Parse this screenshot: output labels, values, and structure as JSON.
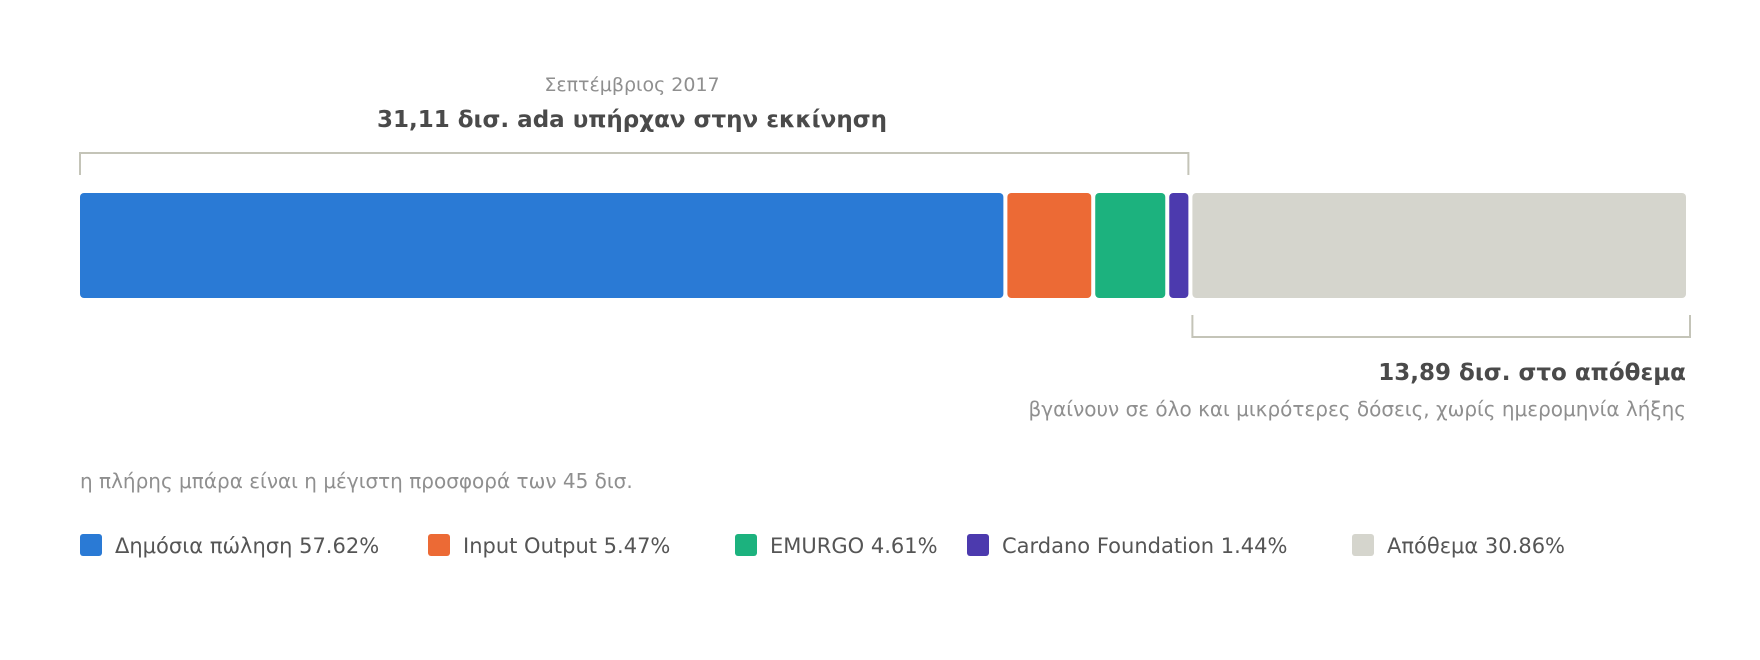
{
  "chart_data": {
    "type": "bar",
    "orientation": "horizontal-stacked",
    "total": 45,
    "series": [
      {
        "name": "Δημόσια πώληση",
        "value": 57.62,
        "label": "Δημόσια πώληση 57.62%",
        "color": "#2a7ad5"
      },
      {
        "name": "Input Output",
        "value": 5.47,
        "label": "Input Output 5.47%",
        "color": "#ec6a35"
      },
      {
        "name": "EMURGO",
        "value": 4.61,
        "label": "EMURGO 4.61%",
        "color": "#1cb27e"
      },
      {
        "name": "Cardano Foundation",
        "value": 1.44,
        "label": "Cardano Foundation 1.44%",
        "color": "#4c3aae"
      },
      {
        "name": "Απόθεμα",
        "value": 30.86,
        "label": "Απόθεμα 30.86%",
        "color": "#d5d5cd"
      }
    ],
    "annotations": {
      "initial_date": "Σεπτέμβριος 2017",
      "initial_label": "31,11 δισ. ada υπήρχαν στην εκκίνηση",
      "reserve_label": "13,89 δισ. στο απόθεμα",
      "reserve_sublabel": "βγαίνουν σε όλο και μικρότερες δόσεις, χωρίς ημερομηνία λήξης",
      "note": "η πλήρης μπάρα είναι η μέγιστη προσφορά των 45 δισ."
    }
  }
}
